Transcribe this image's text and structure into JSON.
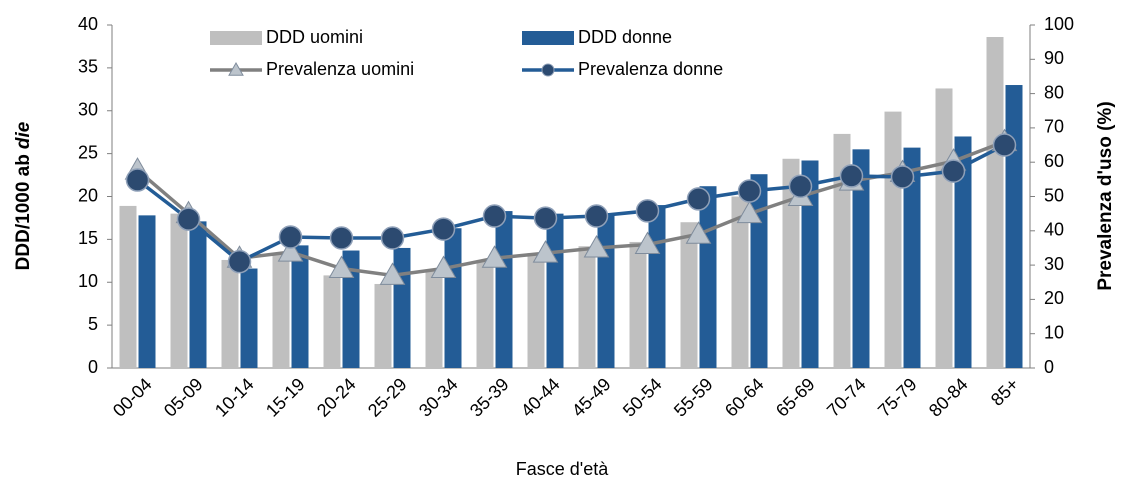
{
  "chart_data": {
    "type": "bar",
    "xlabel": "Fasce d'età",
    "ylabel": [
      "DDD/1000 ab",
      "die"
    ],
    "y2label": "Prevalenza d'uso (%)",
    "categories": [
      "00-04",
      "05-09",
      "10-14",
      "15-19",
      "20-24",
      "25-29",
      "30-34",
      "35-39",
      "40-44",
      "45-49",
      "50-54",
      "55-59",
      "60-64",
      "65-69",
      "70-74",
      "75-79",
      "80-84",
      "85+"
    ],
    "series": [
      {
        "name": "DDD uomini",
        "type": "bar",
        "color": "#bfbfbf",
        "values": [
          18.9,
          18.0,
          12.6,
          13.3,
          10.8,
          9.8,
          11.4,
          12.6,
          13.4,
          14.2,
          14.7,
          17.0,
          20.0,
          24.4,
          27.3,
          29.9,
          32.6,
          38.6
        ]
      },
      {
        "name": "DDD donne",
        "type": "bar",
        "color": "#235c96",
        "values": [
          17.8,
          17.1,
          11.6,
          14.3,
          13.7,
          14.0,
          16.3,
          18.3,
          18.0,
          18.0,
          19.0,
          21.2,
          22.6,
          24.2,
          25.5,
          25.7,
          27.0,
          33.0
        ]
      },
      {
        "name": "Prevalenza uomini",
        "type": "line",
        "axis": "y2",
        "marker": "triangle",
        "color": "#808080",
        "marker_color": "#bcc4cc",
        "values": [
          57.7,
          45.0,
          32.0,
          33.8,
          29.0,
          27.0,
          29.0,
          32.0,
          33.5,
          35.0,
          36.0,
          39.0,
          45.0,
          50.0,
          54.5,
          57.0,
          60.3,
          66.0
        ]
      },
      {
        "name": "Prevalenza donne",
        "type": "line",
        "axis": "y2",
        "marker": "circle",
        "color": "#235c96",
        "marker_color": "#2c4a70",
        "values": [
          54.8,
          43.4,
          31.0,
          38.2,
          37.9,
          37.9,
          40.5,
          44.3,
          43.7,
          44.3,
          45.8,
          49.3,
          51.6,
          53.0,
          56.0,
          55.7,
          57.4,
          65.0
        ]
      }
    ],
    "ylim": [
      0,
      40
    ],
    "yticks": [
      0,
      5,
      10,
      15,
      20,
      25,
      30,
      35,
      40
    ],
    "y2lim": [
      0,
      100
    ],
    "y2ticks": [
      0,
      10,
      20,
      30,
      40,
      50,
      60,
      70,
      80,
      90,
      100
    ]
  }
}
